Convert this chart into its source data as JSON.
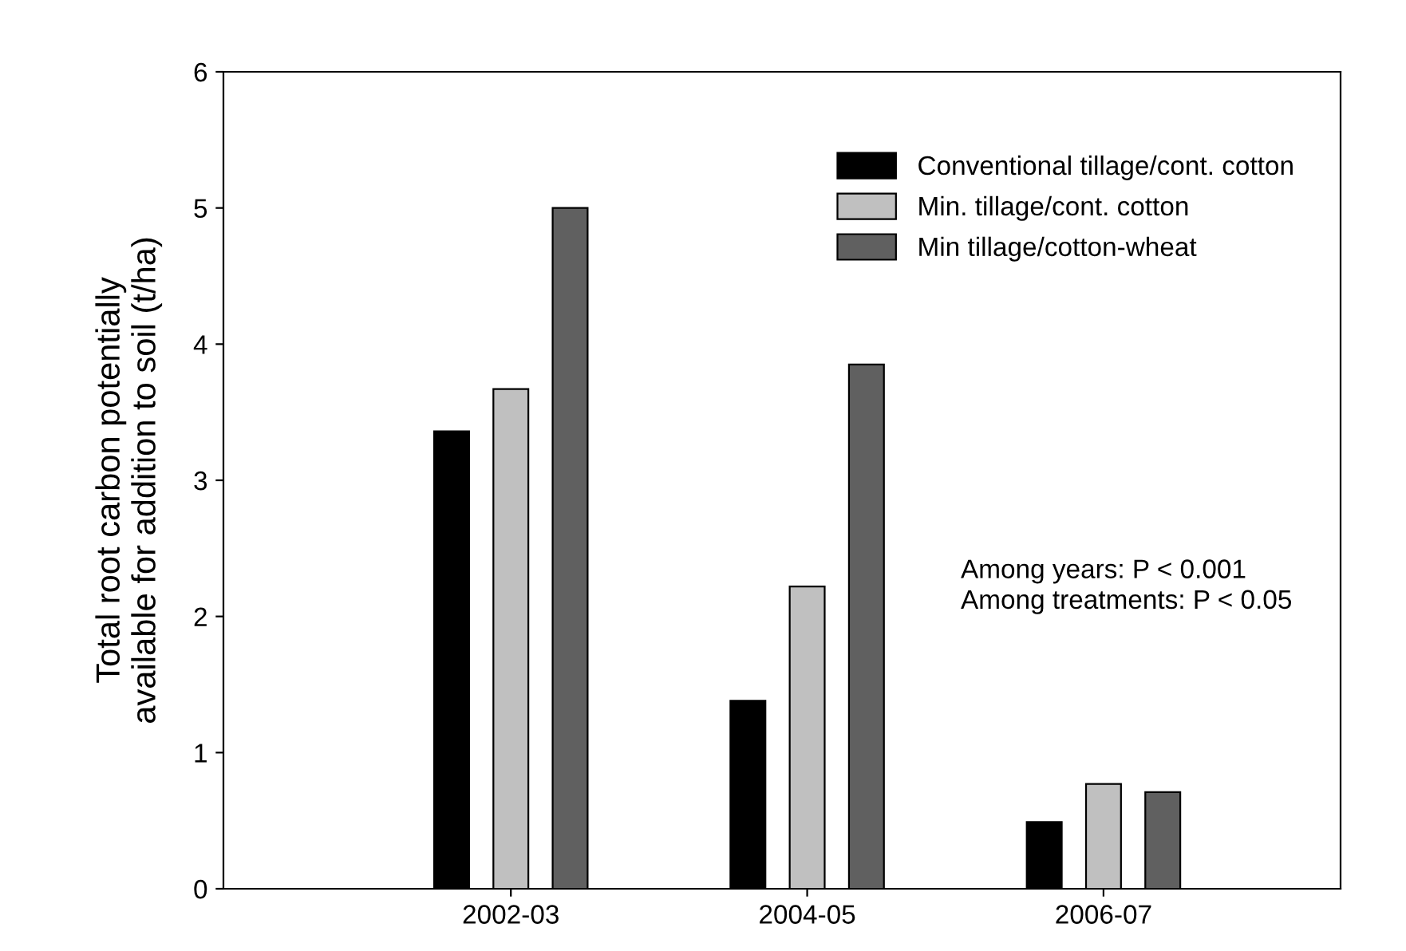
{
  "chart_data": {
    "type": "bar",
    "ylabel": "Total root carbon potentially\navailable for addition to soil (t/ha)",
    "categories": [
      "2002-03",
      "2004-05",
      "2006-07"
    ],
    "series": [
      {
        "name": "Conventional tillage/cont. cotton",
        "color": "#000000",
        "values": [
          3.36,
          1.38,
          0.49
        ]
      },
      {
        "name": "Min. tillage/cont. cotton",
        "color": "#c0c0c0",
        "values": [
          3.67,
          2.22,
          0.77
        ]
      },
      {
        "name": "Min tillage/cotton-wheat",
        "color": "#606060",
        "values": [
          5.0,
          3.85,
          0.71
        ]
      }
    ],
    "ylim": [
      0,
      6
    ],
    "yticks": [
      0,
      1,
      2,
      3,
      4,
      5,
      6
    ],
    "grid": false,
    "legend": "top right",
    "annotations": [
      "Among years: P < 0.001\nAmong treatments: P < 0.05"
    ]
  }
}
